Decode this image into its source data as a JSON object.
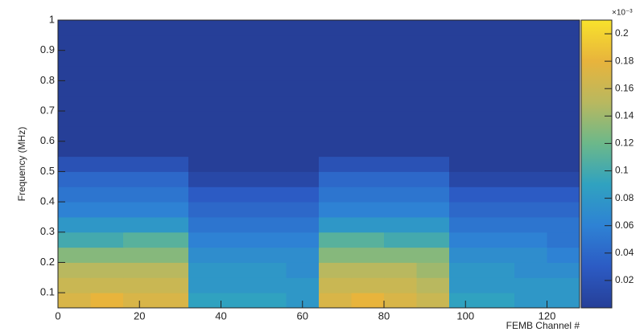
{
  "chart_data": {
    "type": "heatmap",
    "x_label": "FEMB Channel #",
    "y_label": "Frequency (MHz)",
    "colorbar_label": "×10⁻³",
    "xbins": [
      0,
      8,
      16,
      24,
      32,
      40,
      48,
      56,
      64,
      72,
      80,
      88,
      96,
      104,
      112,
      120,
      128
    ],
    "ybins": [
      0.05,
      0.1,
      0.15,
      0.2,
      0.25,
      0.3,
      0.35,
      0.4,
      0.45,
      0.5,
      0.55,
      0.6,
      0.65,
      0.7,
      0.75,
      0.8,
      0.85,
      0.9,
      0.95,
      1
    ],
    "z": [
      [
        0.17,
        0.18,
        0.17,
        0.17,
        0.09,
        0.09,
        0.09,
        0.08,
        0.17,
        0.18,
        0.17,
        0.16,
        0.09,
        0.09,
        0.08,
        0.08
      ],
      [
        0.16,
        0.16,
        0.16,
        0.16,
        0.08,
        0.08,
        0.08,
        0.08,
        0.16,
        0.16,
        0.16,
        0.15,
        0.08,
        0.08,
        0.08,
        0.08
      ],
      [
        0.15,
        0.15,
        0.15,
        0.15,
        0.08,
        0.08,
        0.08,
        0.07,
        0.15,
        0.15,
        0.15,
        0.14,
        0.08,
        0.08,
        0.07,
        0.07
      ],
      [
        0.13,
        0.13,
        0.13,
        0.13,
        0.07,
        0.07,
        0.07,
        0.07,
        0.13,
        0.13,
        0.13,
        0.13,
        0.07,
        0.07,
        0.07,
        0.06
      ],
      [
        0.1,
        0.1,
        0.11,
        0.11,
        0.06,
        0.06,
        0.06,
        0.06,
        0.11,
        0.11,
        0.1,
        0.1,
        0.06,
        0.06,
        0.06,
        0.05
      ],
      [
        0.08,
        0.08,
        0.08,
        0.08,
        0.05,
        0.05,
        0.05,
        0.05,
        0.08,
        0.08,
        0.08,
        0.08,
        0.05,
        0.05,
        0.05,
        0.05
      ],
      [
        0.06,
        0.06,
        0.06,
        0.06,
        0.04,
        0.04,
        0.04,
        0.04,
        0.06,
        0.06,
        0.06,
        0.06,
        0.04,
        0.04,
        0.04,
        0.04
      ],
      [
        0.05,
        0.05,
        0.05,
        0.05,
        0.03,
        0.03,
        0.03,
        0.03,
        0.05,
        0.05,
        0.05,
        0.05,
        0.03,
        0.03,
        0.03,
        0.03
      ],
      [
        0.04,
        0.04,
        0.04,
        0.04,
        0.01,
        0.01,
        0.01,
        0.01,
        0.04,
        0.04,
        0.04,
        0.04,
        0.01,
        0.01,
        0.01,
        0.01
      ],
      [
        0.02,
        0.02,
        0.02,
        0.02,
        0,
        0,
        0,
        0,
        0.02,
        0.02,
        0.02,
        0.02,
        0,
        0,
        0,
        0
      ],
      [
        0,
        0,
        0,
        0,
        0,
        0,
        0,
        0,
        0,
        0,
        0,
        0,
        0,
        0,
        0,
        0
      ],
      [
        0,
        0,
        0,
        0,
        0,
        0,
        0,
        0,
        0,
        0,
        0,
        0,
        0,
        0,
        0,
        0
      ],
      [
        0,
        0,
        0,
        0,
        0,
        0,
        0,
        0,
        0,
        0,
        0,
        0,
        0,
        0,
        0,
        0
      ],
      [
        0,
        0,
        0,
        0,
        0,
        0,
        0,
        0,
        0,
        0,
        0,
        0,
        0,
        0,
        0,
        0
      ],
      [
        0,
        0,
        0,
        0,
        0,
        0,
        0,
        0,
        0,
        0,
        0,
        0,
        0,
        0,
        0,
        0
      ],
      [
        0,
        0,
        0,
        0,
        0,
        0,
        0,
        0,
        0,
        0,
        0,
        0,
        0,
        0,
        0,
        0
      ],
      [
        0,
        0,
        0,
        0,
        0,
        0,
        0,
        0,
        0,
        0,
        0,
        0,
        0,
        0,
        0,
        0
      ],
      [
        0,
        0,
        0,
        0,
        0,
        0,
        0,
        0,
        0,
        0,
        0,
        0,
        0,
        0,
        0,
        0
      ],
      [
        0,
        0,
        0,
        0,
        0,
        0,
        0,
        0,
        0,
        0,
        0,
        0,
        0,
        0,
        0,
        0
      ]
    ],
    "xlim": [
      0,
      128
    ],
    "xticks": [
      0,
      20,
      40,
      60,
      80,
      100,
      120
    ],
    "ylim": [
      0.05,
      1
    ],
    "yticks": [
      0.1,
      0.2,
      0.3,
      0.4,
      0.5,
      0.6,
      0.7,
      0.8,
      0.9,
      1
    ],
    "zlim": [
      0,
      0.21
    ],
    "zticks": [
      0.02,
      0.04,
      0.06,
      0.08,
      0.1,
      0.12,
      0.14,
      0.16,
      0.18,
      0.2
    ],
    "colorscale": [
      "#263f98",
      "#2c5bc4",
      "#2e82d4",
      "#30a2c0",
      "#6cb88a",
      "#b9b85f",
      "#e8b43c",
      "#f8e22c"
    ]
  }
}
